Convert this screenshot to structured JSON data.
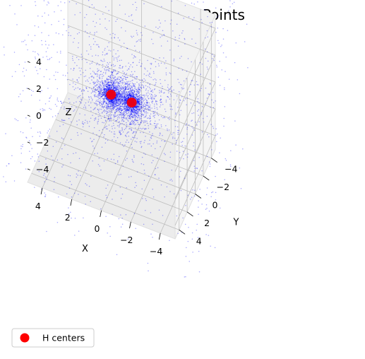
{
  "chart_data": {
    "type": "scatter",
    "projection": "3d",
    "title": "Molecular Grid Points",
    "xlabel": "X",
    "ylabel": "Y",
    "zlabel": "Z",
    "xlim": [
      -5,
      5
    ],
    "ylim": [
      -5,
      5
    ],
    "zlim": [
      -5,
      5
    ],
    "xticks": [
      -4,
      -2,
      0,
      2,
      4
    ],
    "yticks": [
      -4,
      -2,
      0,
      2,
      4
    ],
    "zticks": [
      -4,
      -2,
      0,
      2,
      4
    ],
    "grid": true,
    "legend": {
      "position": "lower-left",
      "entries": [
        "H centers"
      ]
    },
    "series": [
      {
        "kind": "grid-points",
        "color": "#0000ff",
        "distribution": "dense cloud around each atom center, sparse uniform background over the cube"
      },
      {
        "name": "H centers",
        "color": "#ff0000",
        "points": [
          {
            "x": -0.7,
            "y": 0,
            "z": 0
          },
          {
            "x": 0.7,
            "y": 0,
            "z": 0
          }
        ]
      }
    ]
  }
}
